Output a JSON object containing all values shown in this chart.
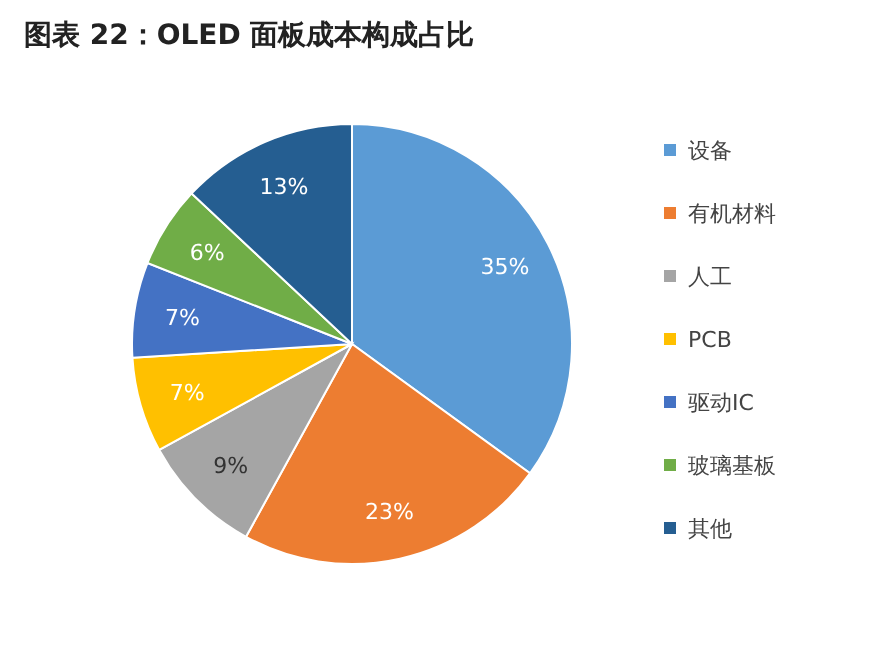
{
  "chart_data": {
    "type": "pie",
    "title": "图表 22：OLED 面板成本构成占比",
    "categories": [
      "设备",
      "有机材料",
      "人工",
      "PCB",
      "驱动IC",
      "玻璃基板",
      "其他"
    ],
    "values": [
      35,
      23,
      9,
      7,
      7,
      6,
      13
    ],
    "colors": [
      "#5b9bd5",
      "#ed7d31",
      "#a5a5a5",
      "#ffc000",
      "#4472c4",
      "#70ad47",
      "#255e91"
    ],
    "value_labels": [
      "35%",
      "23%",
      "9%",
      "7%",
      "7%",
      "6%",
      "13%"
    ],
    "legend": "right"
  }
}
